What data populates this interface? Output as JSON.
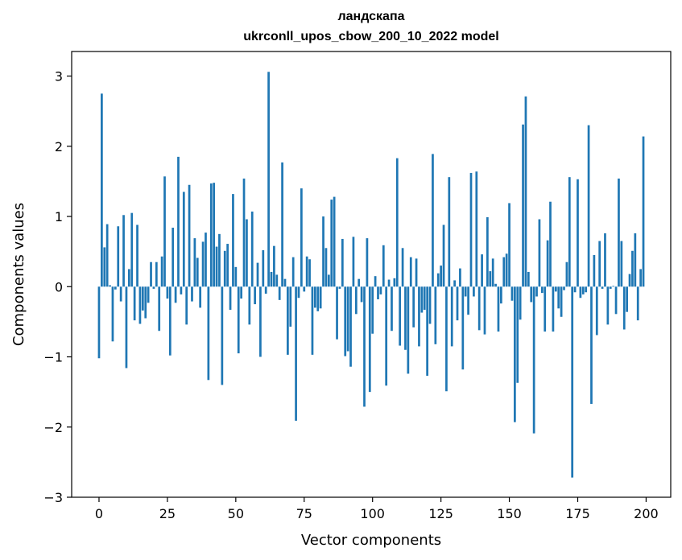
{
  "chart_data": {
    "type": "bar",
    "title": "ландскапа",
    "subtitle": "ukrconll_upos_cbow_200_10_2022 model",
    "xlabel": "Vector components",
    "ylabel": "Components values",
    "xlim": [
      -10,
      209
    ],
    "ylim": [
      -3,
      3.35
    ],
    "xticks": [
      0,
      25,
      50,
      75,
      100,
      125,
      150,
      175,
      200
    ],
    "yticks": [
      -3,
      -2,
      -1,
      0,
      1,
      2,
      3
    ],
    "ytick_labels": [
      "−3",
      "−2",
      "−1",
      "0",
      "1",
      "2",
      "3"
    ],
    "grid": false,
    "legend": "none",
    "bar_color": "#1f77b4",
    "x": [
      0,
      1,
      2,
      3,
      4,
      5,
      6,
      7,
      8,
      9,
      10,
      11,
      12,
      13,
      14,
      15,
      16,
      17,
      18,
      19,
      20,
      21,
      22,
      23,
      24,
      25,
      26,
      27,
      28,
      29,
      30,
      31,
      32,
      33,
      34,
      35,
      36,
      37,
      38,
      39,
      40,
      41,
      42,
      43,
      44,
      45,
      46,
      47,
      48,
      49,
      50,
      51,
      52,
      53,
      54,
      55,
      56,
      57,
      58,
      59,
      60,
      61,
      62,
      63,
      64,
      65,
      66,
      67,
      68,
      69,
      70,
      71,
      72,
      73,
      74,
      75,
      76,
      77,
      78,
      79,
      80,
      81,
      82,
      83,
      84,
      85,
      86,
      87,
      88,
      89,
      90,
      91,
      92,
      93,
      94,
      95,
      96,
      97,
      98,
      99,
      100,
      101,
      102,
      103,
      104,
      105,
      106,
      107,
      108,
      109,
      110,
      111,
      112,
      113,
      114,
      115,
      116,
      117,
      118,
      119,
      120,
      121,
      122,
      123,
      124,
      125,
      126,
      127,
      128,
      129,
      130,
      131,
      132,
      133,
      134,
      135,
      136,
      137,
      138,
      139,
      140,
      141,
      142,
      143,
      144,
      145,
      146,
      147,
      148,
      149,
      150,
      151,
      152,
      153,
      154,
      155,
      156,
      157,
      158,
      159,
      160,
      161,
      162,
      163,
      164,
      165,
      166,
      167,
      168,
      169,
      170,
      171,
      172,
      173,
      174,
      175,
      176,
      177,
      178,
      179,
      180,
      181,
      182,
      183,
      184,
      185,
      186,
      187,
      188,
      189,
      190,
      191,
      192,
      193,
      194,
      195,
      196,
      197,
      198,
      199
    ],
    "values": [
      -1.02,
      2.75,
      0.56,
      0.89,
      0.02,
      -0.78,
      -0.04,
      0.86,
      -0.21,
      1.02,
      -1.16,
      0.25,
      1.05,
      -0.48,
      0.88,
      -0.53,
      -0.34,
      -0.45,
      -0.23,
      0.35,
      -0.03,
      0.35,
      -0.63,
      0.43,
      1.57,
      -0.17,
      -0.98,
      0.84,
      -0.23,
      1.85,
      -0.11,
      1.35,
      -0.54,
      1.45,
      -0.21,
      0.69,
      0.41,
      -0.3,
      0.64,
      0.77,
      -1.33,
      1.47,
      1.48,
      0.57,
      0.75,
      -1.4,
      0.51,
      0.61,
      -0.33,
      1.32,
      0.28,
      -0.95,
      -0.17,
      1.54,
      0.96,
      -0.54,
      1.07,
      -0.25,
      0.34,
      -1.0,
      0.52,
      -0.1,
      3.06,
      0.21,
      0.58,
      0.17,
      -0.19,
      1.77,
      0.11,
      -0.97,
      -0.57,
      0.42,
      -1.91,
      -0.16,
      1.4,
      -0.07,
      0.43,
      0.39,
      -0.97,
      -0.3,
      -0.35,
      -0.31,
      1.0,
      0.55,
      0.17,
      1.24,
      1.28,
      -0.75,
      -0.03,
      0.68,
      -0.99,
      -0.92,
      -1.14,
      0.71,
      -0.39,
      0.11,
      -0.22,
      -1.71,
      0.69,
      -1.5,
      -0.67,
      0.15,
      -0.18,
      -0.11,
      0.59,
      -1.41,
      0.1,
      -0.63,
      0.12,
      1.83,
      -0.84,
      0.55,
      -0.9,
      -1.24,
      0.42,
      -0.58,
      0.4,
      -0.85,
      -0.37,
      -0.33,
      -1.27,
      -0.53,
      1.89,
      -0.82,
      0.19,
      0.3,
      0.88,
      -1.49,
      1.56,
      -0.85,
      0.09,
      -0.48,
      0.26,
      -1.18,
      -0.14,
      -0.4,
      1.62,
      -0.14,
      1.64,
      -0.62,
      0.46,
      -0.68,
      0.99,
      0.22,
      0.4,
      0.04,
      -0.64,
      -0.24,
      0.42,
      0.47,
      1.19,
      -0.2,
      -1.93,
      -1.37,
      -0.47,
      2.31,
      2.71,
      0.21,
      -0.22,
      -2.09,
      -0.14,
      0.96,
      -0.09,
      -0.64,
      0.66,
      1.21,
      -0.64,
      -0.07,
      -0.31,
      -0.43,
      -0.05,
      0.35,
      1.56,
      -2.72,
      -0.08,
      1.53,
      -0.16,
      -0.11,
      -0.08,
      2.3,
      -1.67,
      0.45,
      -0.69,
      0.65,
      -0.03,
      0.76,
      -0.54,
      -0.03,
      0.01,
      -0.39,
      1.54,
      0.65,
      -0.61,
      -0.36,
      0.18,
      0.51,
      0.76,
      -0.48,
      0.25,
      2.14
    ]
  }
}
